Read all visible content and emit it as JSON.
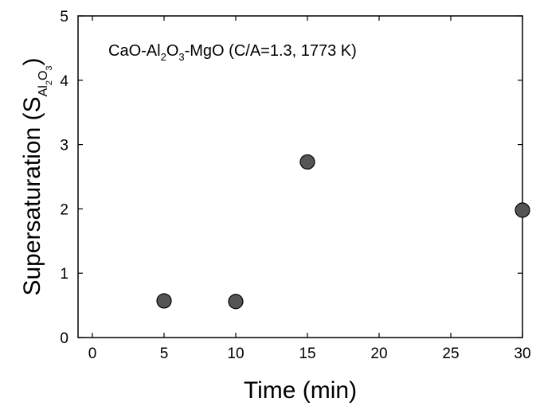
{
  "chart_data": {
    "type": "scatter",
    "annotation": {
      "prefix": "CaO-Al",
      "sub1": "2",
      "mid1": "O",
      "sub2": "3",
      "suffix": "-MgO (C/A=1.3, 1773 K)"
    },
    "xlabel": "Time (min)",
    "ylabel": {
      "main": "Supersaturation (S",
      "sub": "Al",
      "subsub1": "2",
      "subO": "O",
      "subsub2": "3",
      "close": ")"
    },
    "xlim": [
      -1,
      30
    ],
    "ylim": [
      0,
      5
    ],
    "xticks": [
      0,
      5,
      10,
      15,
      20,
      25,
      30
    ],
    "yticks": [
      0,
      1,
      2,
      3,
      4,
      5
    ],
    "grid": false,
    "points": [
      {
        "x": 5,
        "y": 0.57
      },
      {
        "x": 10,
        "y": 0.56
      },
      {
        "x": 15,
        "y": 2.73
      },
      {
        "x": 30,
        "y": 1.98
      }
    ],
    "marker_color": "#555555",
    "marker_edge_color": "#000000"
  }
}
